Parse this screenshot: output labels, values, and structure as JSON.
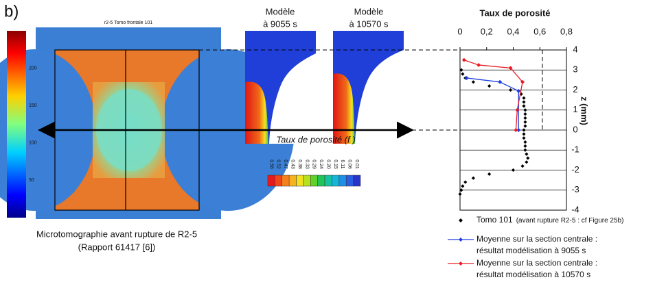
{
  "panel_label": "b)",
  "tomo": {
    "title": "r2-5  Tomo frontale 101",
    "colorbar_ticks": [
      200,
      150,
      100,
      50
    ],
    "caption_lines": [
      "Microtomographie avant rupture de R2-5",
      "(Rapport 61417 [6])"
    ]
  },
  "models": [
    {
      "line1": "Modèle",
      "line2": "à 9055 s"
    },
    {
      "line1": "Modèle",
      "line2": "à 10570 s"
    }
  ],
  "porosity_scale": {
    "title": "Taux de porosité (f )",
    "labels": [
      "0.56",
      "0.52",
      "0.47",
      "0.43",
      "0.38",
      "0.33",
      "0.29",
      "0.24",
      "0.20",
      "0.15",
      "0.11",
      "0.06",
      "0.01"
    ],
    "colors": [
      "#e8191a",
      "#f0461c",
      "#f5801e",
      "#f7b21f",
      "#f2e21f",
      "#b7e01f",
      "#5fd12a",
      "#22c35a",
      "#16c2a0",
      "#15b6d9",
      "#1e8fe6",
      "#2a5ee0",
      "#2a33c8"
    ]
  },
  "chart_data": {
    "type": "scatter",
    "title": "Taux de porosité",
    "y_label": "z (mm)",
    "xlim": [
      0,
      0.8
    ],
    "ylim": [
      -4,
      4
    ],
    "xticks": [
      0,
      {
        "value": 0.2,
        "label": "0,2"
      },
      {
        "value": 0.4,
        "label": "0,4"
      },
      {
        "value": 0.6,
        "label": "0,6"
      },
      {
        "value": 0.8,
        "label": "0,8"
      }
    ],
    "yticks": [
      -4,
      -3,
      -2,
      -1,
      0,
      1,
      2,
      3,
      4
    ],
    "grid": true,
    "series": [
      {
        "name": "Tomo 101",
        "detail": "(avant rupture R2-5 : cf Figure 25b)",
        "color": "#000000",
        "line": false,
        "x": [
          0.01,
          0.02,
          0.04,
          0.1,
          0.22,
          0.38,
          0.46,
          0.48,
          0.48,
          0.48,
          0.49,
          0.49,
          0.49,
          0.49,
          0.49,
          0.48,
          0.48,
          0.48,
          0.49,
          0.49,
          0.49,
          0.5,
          0.51,
          0.5,
          0.47,
          0.4,
          0.22,
          0.1,
          0.04,
          0.02,
          0.01,
          0.0
        ],
        "values": [
          3.0,
          2.8,
          2.6,
          2.4,
          2.2,
          2.0,
          1.8,
          1.6,
          1.4,
          1.2,
          1.0,
          0.8,
          0.6,
          0.4,
          0.2,
          0,
          -0.2,
          -0.4,
          -0.6,
          -0.8,
          -1.0,
          -1.2,
          -1.4,
          -1.6,
          -1.8,
          -2.0,
          -2.2,
          -2.4,
          -2.6,
          -2.8,
          -3.0,
          -3.2
        ]
      },
      {
        "name": "Moyenne sur la section centrale :",
        "detail": "résultat modélisation à 9055 s",
        "color": "#1f3fe0",
        "line": true,
        "x": [
          0.05,
          0.3,
          0.44,
          0.44
        ],
        "values": [
          2.6,
          2.4,
          1.95,
          0
        ]
      },
      {
        "name": "Moyenne sur la section centrale :",
        "detail": "résultat modélisation à 10570 s",
        "color": "#e81c24",
        "line": true,
        "x": [
          0.03,
          0.14,
          0.38,
          0.47,
          0.43,
          0.42
        ],
        "values": [
          3.5,
          3.25,
          3.1,
          2.4,
          1.0,
          0
        ]
      }
    ]
  }
}
